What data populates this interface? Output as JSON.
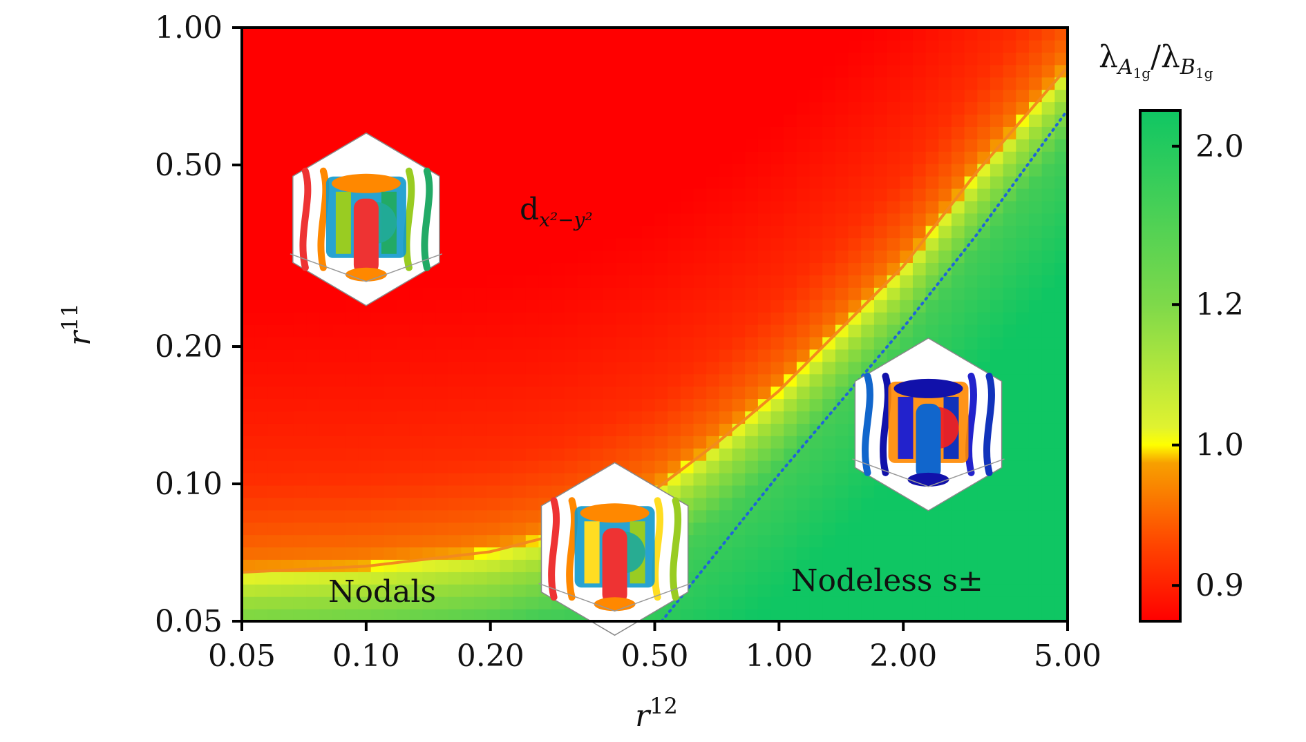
{
  "chart_data": {
    "type": "heatmap",
    "x": {
      "scale": "log",
      "range": [
        0.05,
        5.0
      ],
      "ticks": [
        0.05,
        0.1,
        0.2,
        0.5,
        1.0,
        2.0,
        5.0
      ],
      "tick_labels": [
        "0.05",
        "0.10",
        "0.20",
        "0.50",
        "1.00",
        "2.00",
        "5.00"
      ],
      "label_base": "r",
      "label_sup": "12"
    },
    "y": {
      "scale": "log",
      "range": [
        0.05,
        1.0
      ],
      "ticks": [
        0.05,
        0.1,
        0.2,
        0.5,
        1.0
      ],
      "tick_labels": [
        "0.05",
        "0.10",
        "0.20",
        "0.50",
        "1.00"
      ],
      "label_base": "r",
      "label_sup": "11"
    },
    "colorbar": {
      "title_num_base": "λ",
      "title_num_sub": "A",
      "title_num_subsub": "1g",
      "title_den_base": "λ",
      "title_den_sub": "B",
      "title_den_subsub": "1g",
      "ticks": [
        0.9,
        1.0,
        1.2,
        2.0
      ],
      "tick_labels": [
        "0.9",
        "1.0",
        "1.2",
        "2.0"
      ],
      "colors": {
        "red": "#ff0000",
        "orange": "#f28a1e",
        "yellow": "#ffff00",
        "green": "#0fc663"
      }
    },
    "boundary_ratio_1": {
      "points": [
        [
          0.05,
          0.064
        ],
        [
          0.1,
          0.066
        ],
        [
          0.2,
          0.071
        ],
        [
          0.3,
          0.078
        ],
        [
          0.5,
          0.097
        ],
        [
          0.7,
          0.122
        ],
        [
          1.0,
          0.16
        ],
        [
          2.0,
          0.3
        ],
        [
          3.0,
          0.48
        ],
        [
          5.0,
          0.82
        ]
      ],
      "color": "#f28a1e",
      "style": "solid"
    },
    "nodal_boundary": {
      "points": [
        [
          0.52,
          0.05
        ],
        [
          1.0,
          0.105
        ],
        [
          2.0,
          0.22
        ],
        [
          3.0,
          0.35
        ],
        [
          5.0,
          0.66
        ]
      ],
      "color": "#1f64d8",
      "style": "dotted"
    },
    "regions": [
      {
        "label_base": "d",
        "label_sub": "x²−y²",
        "x": 0.3,
        "y": 0.36
      },
      {
        "label": "Nodals",
        "x": 0.16,
        "y": 0.055
      },
      {
        "label": "Nodeless s±",
        "x": 2.5,
        "y": 0.057
      }
    ],
    "insets": [
      {
        "name": "fermi-surface-d-wave",
        "x": 0.1,
        "y": 0.38
      },
      {
        "name": "fermi-surface-nodal",
        "x": 0.4,
        "y": 0.072
      },
      {
        "name": "fermi-surface-nodeless",
        "x": 2.3,
        "y": 0.135
      }
    ]
  }
}
